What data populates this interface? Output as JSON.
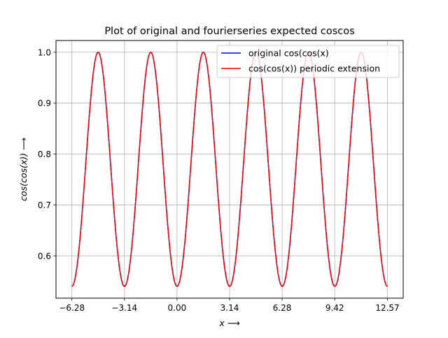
{
  "chart_data": {
    "type": "line",
    "title": "Plot of original and fourierseries expected coscos",
    "xlabel": "x ⟶",
    "ylabel": "cos(cos(x)) ⟶",
    "xlim": [
      -7.23,
      13.51
    ],
    "ylim": [
      0.517,
      1.023
    ],
    "xticks": [
      -6.28,
      -3.14,
      0.0,
      3.14,
      6.28,
      9.42,
      12.57
    ],
    "xtick_labels": [
      "−6.28",
      "−3.14",
      "0.00",
      "3.14",
      "6.28",
      "9.42",
      "12.57"
    ],
    "yticks": [
      0.6,
      0.7,
      0.8,
      0.9,
      1.0
    ],
    "ytick_labels": [
      "0.6",
      "0.7",
      "0.8",
      "0.9",
      "1.0"
    ],
    "grid": true,
    "legend_position": "top-right",
    "function": "cos(cos(x))",
    "x_range": [
      -6.2832,
      12.5664
    ],
    "series": [
      {
        "name": "original cos(cos(x)",
        "color": "#0000ff",
        "x": [
          -6.2832,
          -4.7124,
          -3.1416,
          -1.5708,
          0.0,
          1.5708,
          3.1416,
          4.7124,
          6.2832,
          7.854,
          9.4248,
          10.9956,
          12.5664
        ],
        "y": [
          0.5403,
          1.0,
          0.5403,
          1.0,
          0.5403,
          1.0,
          0.5403,
          1.0,
          0.5403,
          1.0,
          0.5403,
          1.0,
          0.5403
        ]
      },
      {
        "name": "cos(cos(x)) periodic extension",
        "color": "#ff0000",
        "x": [
          -6.2832,
          -4.7124,
          -3.1416,
          -1.5708,
          0.0,
          1.5708,
          3.1416,
          4.7124,
          6.2832,
          7.854,
          9.4248,
          10.9956,
          12.5664
        ],
        "y": [
          0.5403,
          1.0,
          0.5403,
          1.0,
          0.5403,
          1.0,
          0.5403,
          1.0,
          0.5403,
          1.0,
          0.5403,
          1.0,
          0.5403
        ]
      }
    ]
  }
}
